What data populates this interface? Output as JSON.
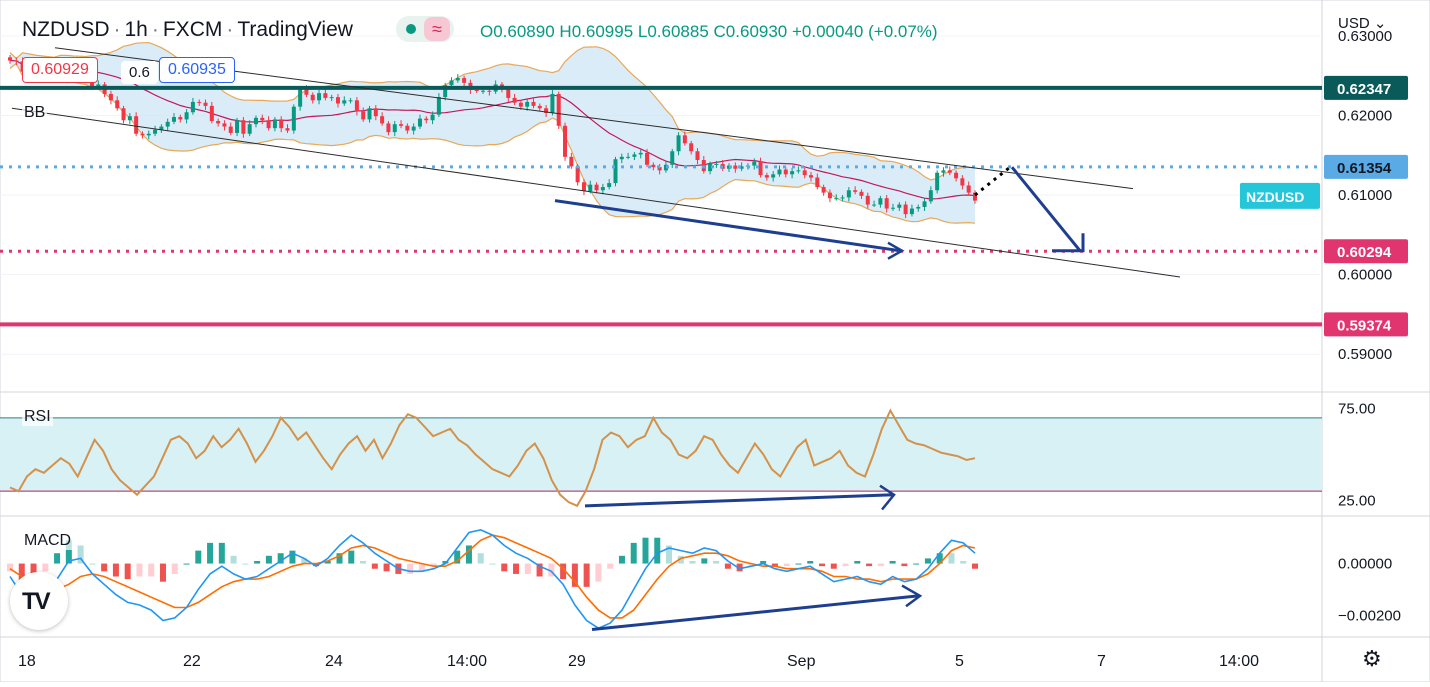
{
  "header": {
    "symbol": "NZDUSD",
    "interval": "1h",
    "exchange": "FXCM",
    "platform": "TradingView",
    "ohlc": {
      "o": "O0.60890",
      "h": "H0.60995",
      "l": "L0.60885",
      "c": "C0.60930",
      "chg": "+0.00040 (+0.07%)"
    },
    "sell_price": "0.60929",
    "spread": "0.6",
    "buy_price": "0.60935"
  },
  "currency_label": "USD",
  "colors": {
    "up_candle": "#089981",
    "down_candle": "#f23645",
    "bb_fill": "#cfe6f7",
    "bb_band": "#e8a857",
    "bb_basis": "#c2185b",
    "trend_line": "#2b2b2b",
    "arrow": "#1e3f8f",
    "rsi_line": "#d4914a",
    "rsi_band": "#d7f1f5",
    "macd_line": "#2196f3",
    "signal_line": "#ff6d00"
  },
  "chart_data": [
    {
      "type": "candlestick",
      "title": "NZDUSD, 1h, FXCM",
      "x_labels": [
        "18",
        "22",
        "24",
        "14:00",
        "29",
        "Sep",
        "5",
        "7",
        "14:00"
      ],
      "y_ticks": [
        "0.63000",
        "0.62000",
        "0.61000",
        "0.60000",
        "0.59000"
      ],
      "ylim": [
        0.5855,
        0.6335
      ],
      "grid": true,
      "indicator_label": "BB",
      "symbol_tag": "NZDUSD",
      "horizontal_levels": [
        {
          "value": 0.62347,
          "label": "0.62347",
          "style": "solid",
          "color": "#0b5a5a"
        },
        {
          "value": 0.61354,
          "label": "0.61354",
          "style": "dotted",
          "color": "#5aaae6"
        },
        {
          "value": 0.60294,
          "label": "0.60294",
          "style": "dotted",
          "color": "#e0356e"
        },
        {
          "value": 0.59374,
          "label": "0.59374",
          "style": "solid",
          "color": "#e0356e"
        }
      ],
      "closes": [
        0.6269,
        0.6268,
        0.6255,
        0.6265,
        0.626,
        0.6259,
        0.6258,
        0.6257,
        0.6245,
        0.6247,
        0.6257,
        0.6247,
        0.6247,
        0.6237,
        0.6239,
        0.6227,
        0.6219,
        0.6209,
        0.6194,
        0.6199,
        0.6177,
        0.6175,
        0.6177,
        0.6182,
        0.6186,
        0.6192,
        0.6198,
        0.6195,
        0.6204,
        0.6217,
        0.6216,
        0.6212,
        0.6193,
        0.619,
        0.6186,
        0.6178,
        0.6194,
        0.6177,
        0.6189,
        0.6197,
        0.6194,
        0.6184,
        0.6195,
        0.6184,
        0.6181,
        0.6211,
        0.6233,
        0.6226,
        0.6219,
        0.6228,
        0.6222,
        0.6223,
        0.6215,
        0.6219,
        0.6219,
        0.6205,
        0.6195,
        0.6209,
        0.6199,
        0.619,
        0.6179,
        0.6189,
        0.6187,
        0.6181,
        0.6186,
        0.6196,
        0.6194,
        0.6201,
        0.6223,
        0.6238,
        0.6244,
        0.6247,
        0.6241,
        0.6232,
        0.6231,
        0.6231,
        0.623,
        0.6239,
        0.6233,
        0.6222,
        0.6216,
        0.6211,
        0.6217,
        0.6212,
        0.6209,
        0.6203,
        0.6227,
        0.6187,
        0.6148,
        0.6136,
        0.6116,
        0.6105,
        0.6113,
        0.6106,
        0.611,
        0.6115,
        0.6145,
        0.6148,
        0.6148,
        0.6151,
        0.6153,
        0.6138,
        0.6135,
        0.6131,
        0.6138,
        0.6155,
        0.6175,
        0.6165,
        0.6155,
        0.6144,
        0.613,
        0.6139,
        0.6139,
        0.6133,
        0.6137,
        0.6133,
        0.6136,
        0.6137,
        0.6142,
        0.6125,
        0.6122,
        0.6126,
        0.6132,
        0.6126,
        0.613,
        0.6131,
        0.6125,
        0.6122,
        0.611,
        0.6103,
        0.6096,
        0.6096,
        0.6097,
        0.6106,
        0.6104,
        0.6099,
        0.6088,
        0.6088,
        0.6096,
        0.6083,
        0.6084,
        0.6088,
        0.6076,
        0.6083,
        0.6085,
        0.6092,
        0.6106,
        0.6128,
        0.6131,
        0.6128,
        0.6121,
        0.6112,
        0.6103,
        0.6093
      ],
      "candle_x_range": [
        "18",
        "5"
      ]
    },
    {
      "type": "line",
      "title": "RSI",
      "y_ticks": [
        "75.00",
        "25.00"
      ],
      "ylim": [
        17,
        83
      ],
      "band": [
        30,
        70
      ],
      "values": [
        32,
        30,
        38,
        42,
        40,
        44,
        48,
        45,
        38,
        48,
        58,
        52,
        42,
        36,
        32,
        28,
        33,
        38,
        48,
        58,
        60,
        56,
        48,
        52,
        60,
        54,
        58,
        64,
        56,
        46,
        52,
        60,
        70,
        65,
        58,
        62,
        55,
        48,
        42,
        50,
        56,
        60,
        52,
        58,
        48,
        56,
        66,
        72,
        70,
        65,
        60,
        62,
        64,
        58,
        55,
        50,
        46,
        42,
        40,
        38,
        44,
        52,
        56,
        48,
        36,
        28,
        24,
        22,
        30,
        42,
        58,
        62,
        60,
        54,
        58,
        60,
        70,
        62,
        58,
        50,
        48,
        52,
        60,
        58,
        50,
        44,
        40,
        48,
        56,
        50,
        42,
        38,
        46,
        54,
        58,
        44,
        46,
        48,
        52,
        44,
        40,
        38,
        50,
        64,
        74,
        66,
        58,
        56,
        55,
        53,
        51,
        50,
        49,
        47,
        48
      ],
      "x_ranges": [
        [
          "18",
          "5"
        ]
      ]
    },
    {
      "type": "histogram_lines",
      "title": "MACD",
      "y_ticks": [
        "0.00000",
        "-0.00200"
      ],
      "ylim": [
        -0.0028,
        0.0018
      ],
      "macd": [
        -0.0005,
        -0.0012,
        -0.0018,
        -0.0014,
        -0.0006,
        0.0001,
        0.0002,
        -0.0004,
        -0.0008,
        -0.0012,
        -0.0015,
        -0.0016,
        -0.0018,
        -0.0022,
        -0.0021,
        -0.0017,
        -0.001,
        -0.0004,
        -0.0001,
        -0.0004,
        -0.0006,
        -0.0005,
        -0.0002,
        0.0001,
        0.0004,
        0.0002,
        -0.0001,
        0.0002,
        0.0007,
        0.0011,
        0.0008,
        0.0004,
        0.0001,
        -0.0002,
        -0.0003,
        -0.0003,
        -0.0002,
        0.0,
        0.0006,
        0.0012,
        0.0013,
        0.0011,
        0.0007,
        0.0004,
        0.0002,
        -0.0001,
        -0.0003,
        -0.0008,
        -0.0016,
        -0.0022,
        -0.0025,
        -0.0023,
        -0.0018,
        -0.001,
        -0.0002,
        0.0004,
        0.0006,
        0.0005,
        0.0004,
        0.0006,
        0.0005,
        0.0001,
        -0.0002,
        -0.0001,
        0.0,
        -0.0002,
        -0.0003,
        -0.0002,
        -0.0001,
        -0.0004,
        -0.0007,
        -0.0006,
        -0.0005,
        -0.0007,
        -0.0008,
        -0.0005,
        -0.0007,
        -0.0006,
        -0.0002,
        0.0004,
        0.0009,
        0.0008,
        0.0004
      ],
      "signal": [
        -0.0002,
        -0.0005,
        -0.0009,
        -0.0011,
        -0.001,
        -0.0008,
        -0.0005,
        -0.0004,
        -0.0005,
        -0.0007,
        -0.0009,
        -0.0011,
        -0.0013,
        -0.0015,
        -0.0017,
        -0.0017,
        -0.0015,
        -0.0012,
        -0.0009,
        -0.0007,
        -0.0006,
        -0.0006,
        -0.0005,
        -0.0003,
        -0.0001,
        0.0,
        0.0,
        0.0001,
        0.0003,
        0.0006,
        0.0007,
        0.0006,
        0.0004,
        0.0002,
        0.0001,
        0.0,
        -0.0001,
        -0.0001,
        0.0001,
        0.0005,
        0.0009,
        0.0011,
        0.001,
        0.0008,
        0.0006,
        0.0004,
        0.0002,
        -0.0002,
        -0.0007,
        -0.0013,
        -0.0018,
        -0.0021,
        -0.0021,
        -0.0018,
        -0.0012,
        -0.0006,
        -0.0001,
        0.0002,
        0.0003,
        0.0004,
        0.0004,
        0.0003,
        0.0001,
        0.0,
        -0.0001,
        -0.0001,
        -0.0002,
        -0.0002,
        -0.0002,
        -0.0003,
        -0.0005,
        -0.0005,
        -0.0006,
        -0.0006,
        -0.0007,
        -0.0006,
        -0.0006,
        -0.0006,
        -0.0004,
        0.0,
        0.0005,
        0.0007,
        0.0006
      ],
      "x_ranges": [
        [
          "18",
          "5"
        ]
      ]
    }
  ]
}
